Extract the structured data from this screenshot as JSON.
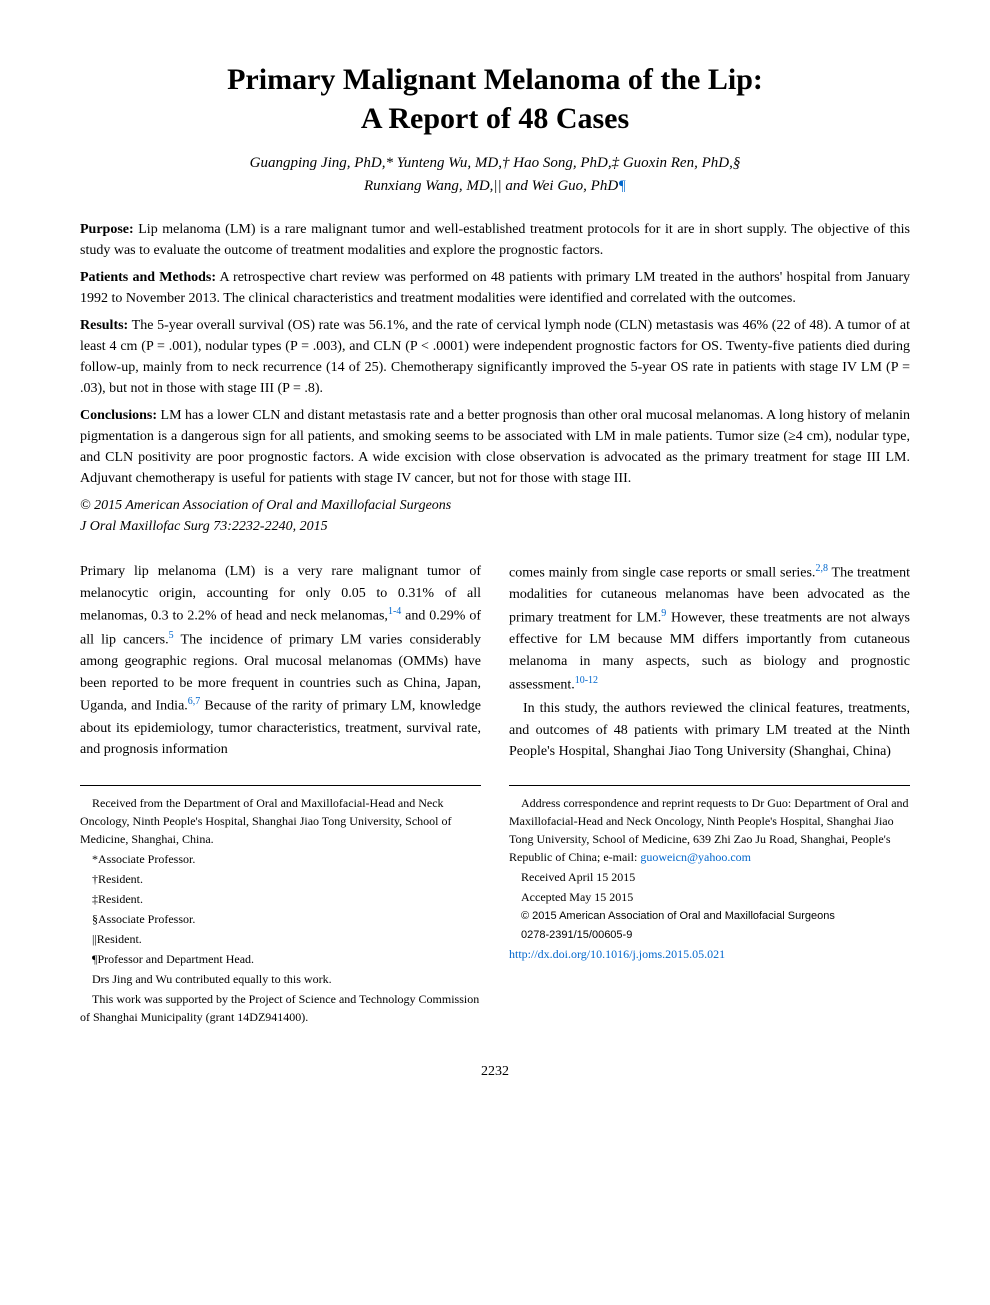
{
  "title_line1": "Primary Malignant Melanoma of the Lip:",
  "title_line2": "A Report of 48 Cases",
  "authors_line1": "Guangping Jing, PhD,* Yunteng Wu, MD,† Hao Song, PhD,‡ Guoxin Ren, PhD,§",
  "authors_line2_pre": "Runxiang Wang, MD,|| and Wei Guo, PhD",
  "authors_line2_marker": "¶",
  "abstract": {
    "purpose_label": "Purpose:",
    "purpose_text": "Lip melanoma (LM) is a rare malignant tumor and well-established treatment protocols for it are in short supply. The objective of this study was to evaluate the outcome of treatment modalities and explore the prognostic factors.",
    "methods_label": "Patients and Methods:",
    "methods_text": "A retrospective chart review was performed on 48 patients with primary LM treated in the authors' hospital from January 1992 to November 2013. The clinical characteristics and treatment modalities were identified and correlated with the outcomes.",
    "results_label": "Results:",
    "results_text": "The 5-year overall survival (OS) rate was 56.1%, and the rate of cervical lymph node (CLN) metastasis was 46% (22 of 48). A tumor of at least 4 cm (P = .001), nodular types (P = .003), and CLN (P < .0001) were independent prognostic factors for OS. Twenty-five patients died during follow-up, mainly from to neck recurrence (14 of 25). Chemotherapy significantly improved the 5-year OS rate in patients with stage IV LM (P = .03), but not in those with stage III (P = .8).",
    "conclusions_label": "Conclusions:",
    "conclusions_text": "LM has a lower CLN and distant metastasis rate and a better prognosis than other oral mucosal melanomas. A long history of melanin pigmentation is a dangerous sign for all patients, and smoking seems to be associated with LM in male patients. Tumor size (≥4 cm), nodular type, and CLN positivity are poor prognostic factors. A wide excision with close observation is advocated as the primary treatment for stage III LM. Adjuvant chemotherapy is useful for patients with stage IV cancer, but not for those with stage III.",
    "copyright": "© 2015 American Association of Oral and Maxillofacial Surgeons",
    "citation": "J Oral Maxillofac Surg 73:2232-2240, 2015"
  },
  "body": {
    "col1_p1_a": "Primary lip melanoma (LM) is a very rare malignant tumor of melanocytic origin, accounting for only 0.05 to 0.31% of all melanomas, 0.3 to 2.2% of head and neck melanomas,",
    "col1_p1_sup1": "1-4",
    "col1_p1_b": " and 0.29% of all lip cancers.",
    "col1_p1_sup2": "5",
    "col1_p1_c": " The incidence of primary LM varies considerably among geographic regions. Oral mucosal melanomas (OMMs) have been reported to be more frequent in countries such as China, Japan, Uganda, and India.",
    "col1_p1_sup3": "6,7",
    "col1_p1_d": " Because of the rarity of primary LM, knowledge about its epidemiology, tumor characteristics, treatment, survival rate, and prognosis information",
    "col2_p1_a": "comes mainly from single case reports or small series.",
    "col2_p1_sup1": "2,8",
    "col2_p1_b": " The treatment modalities for cutaneous melanomas have been advocated as the primary treatment for LM.",
    "col2_p1_sup2": "9",
    "col2_p1_c": " However, these treatments are not always effective for LM because MM differs importantly from cutaneous melanoma in many aspects, such as biology and prognostic assessment.",
    "col2_p1_sup3": "10-12",
    "col2_p2": "In this study, the authors reviewed the clinical features, treatments, and outcomes of 48 patients with primary LM treated at the Ninth People's Hospital, Shanghai Jiao Tong University (Shanghai, China)"
  },
  "footer": {
    "left": {
      "received": "Received from the Department of Oral and Maxillofacial-Head and Neck Oncology, Ninth People's Hospital, Shanghai Jiao Tong University, School of Medicine, Shanghai, China.",
      "aff1": "*Associate Professor.",
      "aff2": "†Resident.",
      "aff3": "‡Resident.",
      "aff4": "§Associate Professor.",
      "aff5": "||Resident.",
      "aff6": "¶Professor and Department Head.",
      "contrib": "Drs Jing and Wu contributed equally to this work.",
      "funding": "This work was supported by the Project of Science and Technology Commission of Shanghai Municipality (grant 14DZ941400)."
    },
    "right": {
      "address_a": "Address correspondence and reprint requests to Dr Guo: Department of Oral and Maxillofacial-Head and Neck Oncology, Ninth People's Hospital, Shanghai Jiao Tong University, School of Medicine, 639 Zhi Zao Ju Road, Shanghai, People's Republic of China; e-mail: ",
      "email": "guoweicn@yahoo.com",
      "received_date": "Received April 15 2015",
      "accepted_date": "Accepted May 15 2015",
      "copyright_small": "© 2015 American Association of Oral and Maxillofacial Surgeons",
      "issn": "0278-2391/15/00605-9",
      "doi": "http://dx.doi.org/10.1016/j.joms.2015.05.021"
    }
  },
  "page_number": "2232"
}
